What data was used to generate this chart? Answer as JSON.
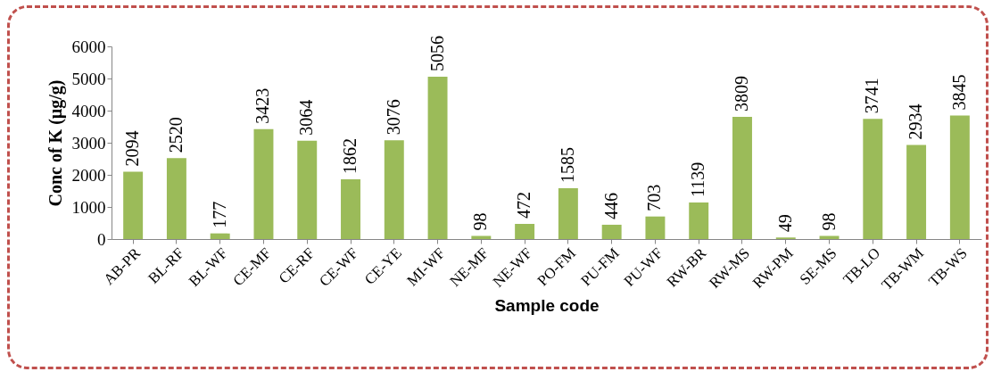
{
  "chart_data": {
    "type": "bar",
    "xlabel": "Sample code",
    "ylabel": "Conc of K (µg/g)",
    "categories": [
      "AB-PR",
      "BL-RF",
      "BL-WF",
      "CE-MF",
      "CE-RF",
      "CE-WF",
      "CE-YE",
      "MI-WF",
      "NE-MF",
      "NE-WF",
      "PO-FM",
      "PU-FM",
      "PU-WF",
      "RW-BR",
      "RW-MS",
      "RW-PM",
      "SE-MS",
      "TB-LO",
      "TB-WM",
      "TB-WS"
    ],
    "values": [
      2094,
      2520,
      177,
      3423,
      3064,
      1862,
      3076,
      5056,
      98,
      472,
      1585,
      446,
      703,
      1139,
      3809,
      49,
      98,
      3741,
      2934,
      3845
    ],
    "color": "#9bbb59",
    "ylim": [
      0,
      6000
    ],
    "yticks": [
      0,
      1000,
      2000,
      3000,
      4000,
      5000,
      6000
    ],
    "grid": false,
    "data_labels": true
  }
}
